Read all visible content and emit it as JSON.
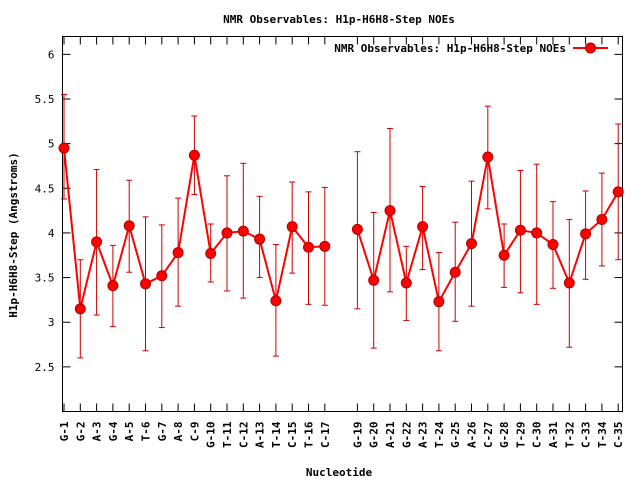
{
  "chart_data": {
    "type": "line",
    "title": "NMR Observables: H1p-H6H8-Step NOEs",
    "xlabel": "Nucleotide",
    "ylabel": "H1p-H6H8-Step (Angstroms)",
    "ylim": [
      2,
      6.2
    ],
    "yticks": [
      2.5,
      3,
      3.5,
      4,
      4.5,
      5,
      5.5,
      6
    ],
    "grid": false,
    "legend_position": "top-right",
    "series_color": "#ff0000",
    "error_color": "#cc0000",
    "series": [
      {
        "name": "NMR Observables: H1p-H6H8-Step NOEs",
        "segments": [
          {
            "labels": [
              "G-1",
              "G-2",
              "A-3",
              "G-4",
              "A-5",
              "T-6",
              "G-7",
              "A-8",
              "C-9",
              "G-10",
              "T-11",
              "C-12",
              "A-13",
              "T-14",
              "C-15",
              "T-16",
              "C-17"
            ],
            "values": [
              4.95,
              3.15,
              3.9,
              3.41,
              4.08,
              3.43,
              3.52,
              3.78,
              4.87,
              3.77,
              4.0,
              4.02,
              3.93,
              3.24,
              4.07,
              3.84,
              3.85
            ],
            "err_low": [
              4.38,
              2.6,
              3.08,
              2.95,
              3.56,
              2.68,
              2.94,
              3.18,
              4.43,
              3.45,
              3.35,
              3.27,
              3.5,
              2.62,
              3.55,
              3.2,
              3.19
            ],
            "err_high": [
              5.55,
              3.7,
              4.71,
              3.86,
              4.59,
              4.18,
              4.09,
              4.39,
              5.31,
              4.1,
              4.64,
              4.78,
              4.41,
              3.87,
              4.57,
              4.46,
              4.51
            ]
          },
          {
            "labels": [
              "G-19",
              "G-20",
              "A-21",
              "G-22",
              "A-23",
              "T-24",
              "G-25",
              "A-26",
              "C-27",
              "G-28",
              "T-29",
              "C-30",
              "A-31",
              "T-32",
              "C-33",
              "T-34",
              "C-35"
            ],
            "values": [
              4.04,
              3.47,
              4.25,
              3.44,
              4.07,
              3.23,
              3.56,
              3.88,
              4.85,
              3.75,
              4.03,
              4.0,
              3.87,
              3.44,
              3.99,
              4.15,
              4.46
            ],
            "err_low": [
              3.15,
              2.71,
              3.34,
              3.02,
              3.59,
              2.68,
              3.01,
              3.18,
              4.27,
              3.39,
              3.33,
              3.2,
              3.38,
              2.72,
              3.48,
              3.63,
              3.7
            ],
            "err_high": [
              4.91,
              4.23,
              5.17,
              3.85,
              4.52,
              3.78,
              4.12,
              4.58,
              5.42,
              4.1,
              4.7,
              4.77,
              4.35,
              4.15,
              4.47,
              4.67,
              5.22
            ]
          }
        ]
      }
    ]
  }
}
